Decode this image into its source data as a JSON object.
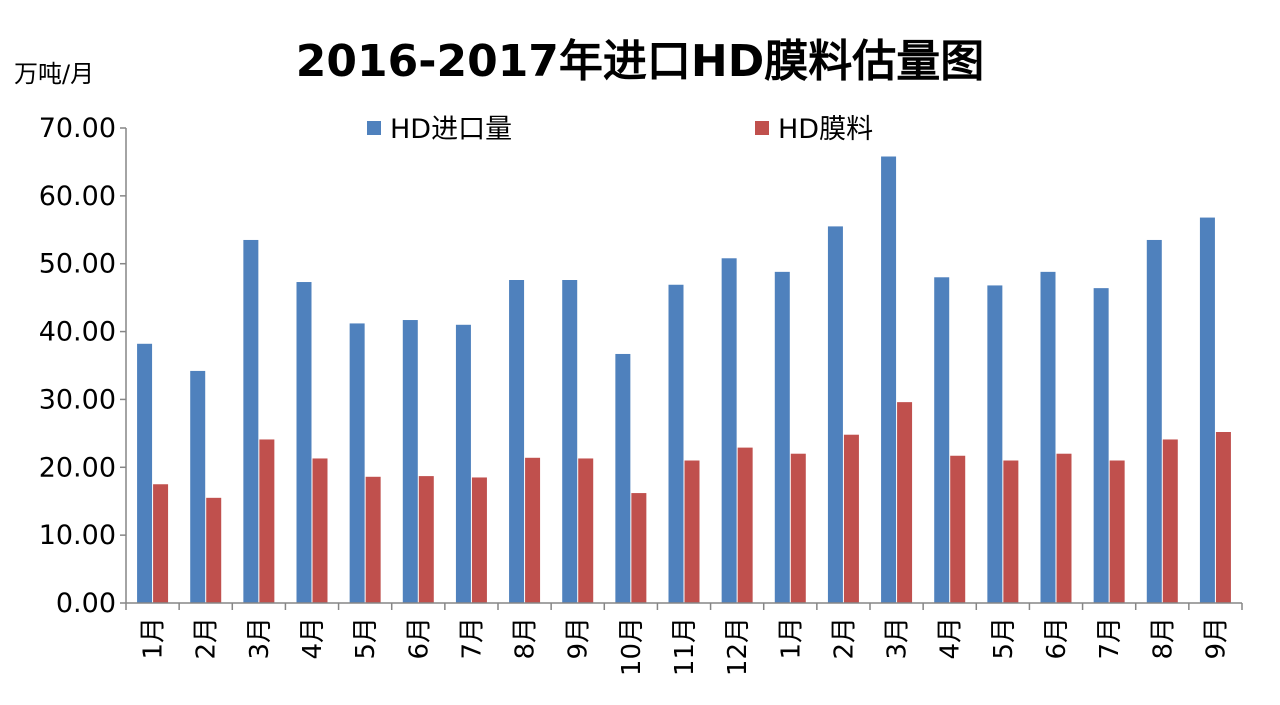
{
  "chart_data": {
    "type": "bar",
    "title": "2016-2017年进口HD膜料估量图",
    "ylabel": "万吨/月",
    "xlabel": "",
    "ylim": [
      0,
      70
    ],
    "yticks": [
      "0.00",
      "10.00",
      "20.00",
      "30.00",
      "40.00",
      "50.00",
      "60.00",
      "70.00"
    ],
    "grid": false,
    "legend_position": "top",
    "categories": [
      "1月",
      "2月",
      "3月",
      "4月",
      "5月",
      "6月",
      "7月",
      "8月",
      "9月",
      "10月",
      "11月",
      "12月",
      "1月",
      "2月",
      "3月",
      "4月",
      "5月",
      "6月",
      "7月",
      "8月",
      "9月"
    ],
    "series": [
      {
        "name": "HD进口量",
        "color": "#4f81bd",
        "values": [
          38.2,
          34.2,
          53.5,
          47.3,
          41.2,
          41.7,
          41.0,
          47.6,
          47.6,
          36.7,
          46.9,
          50.8,
          48.8,
          55.5,
          65.8,
          48.0,
          46.8,
          48.8,
          46.4,
          53.5,
          56.8
        ]
      },
      {
        "name": "HD膜料",
        "color": "#c0504d",
        "values": [
          17.5,
          15.5,
          24.1,
          21.3,
          18.6,
          18.7,
          18.5,
          21.4,
          21.3,
          16.2,
          21.0,
          22.9,
          22.0,
          24.8,
          29.6,
          21.7,
          21.0,
          22.0,
          21.0,
          24.1,
          25.2
        ]
      }
    ]
  }
}
